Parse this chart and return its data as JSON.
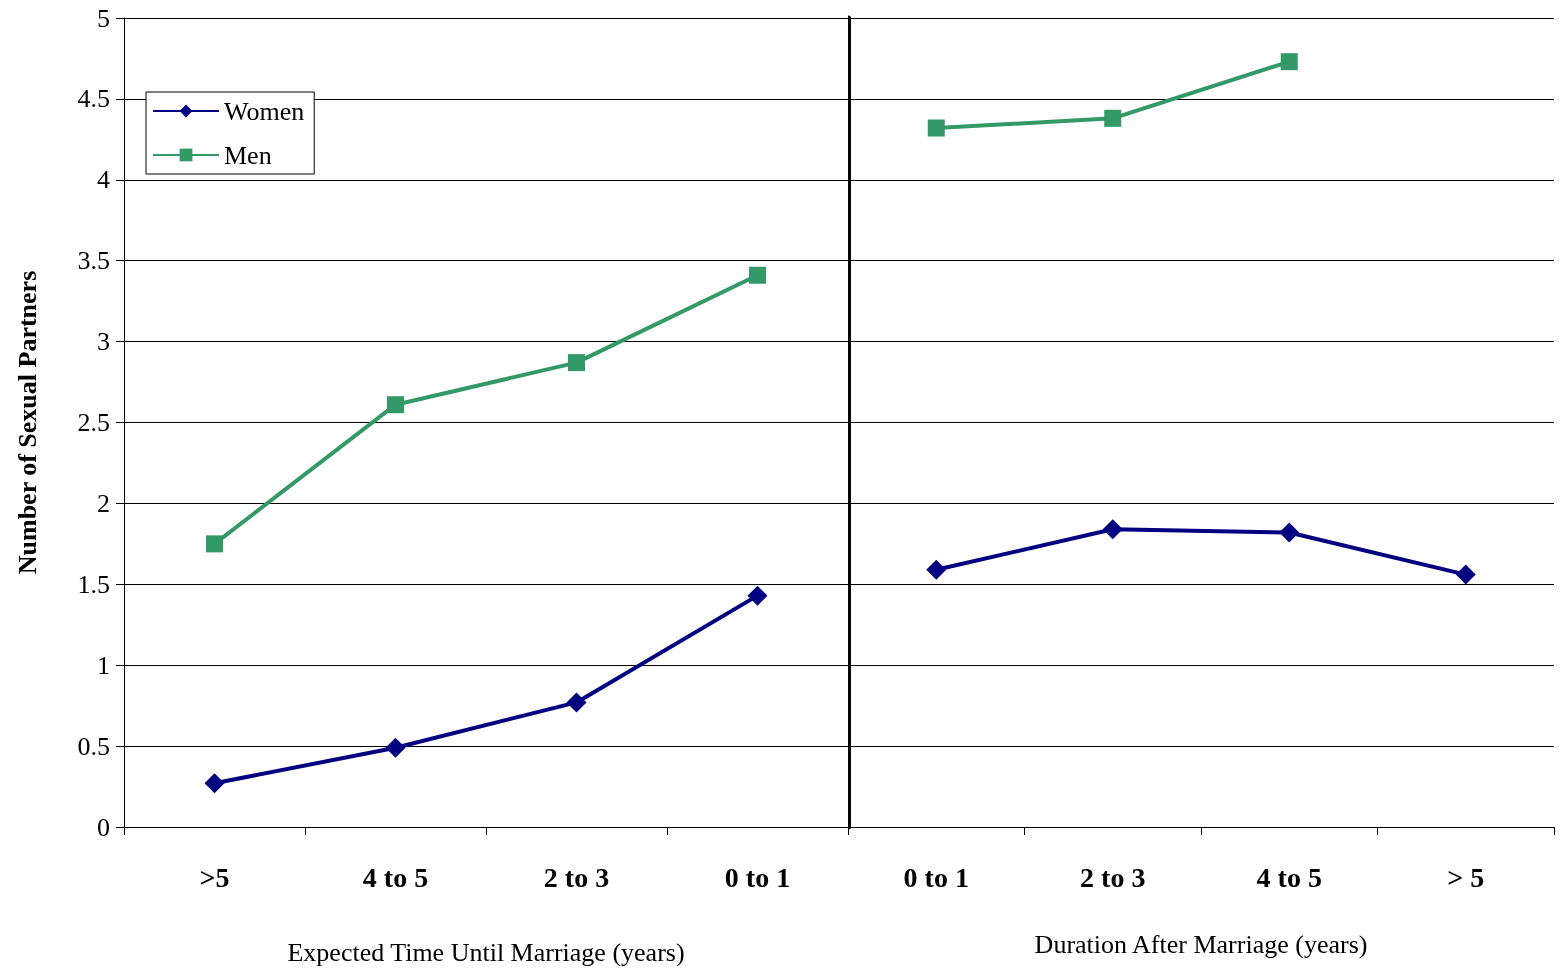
{
  "chart_data": [
    {
      "type": "line",
      "ylabel": "Number of Sexual Partners",
      "xlabel": "Expected Time Until Marriage (years)",
      "categories": [
        ">5",
        "4 to 5",
        "2 to 3",
        "0 to 1"
      ],
      "ylim": [
        0,
        5
      ],
      "yticks": [
        0,
        0.5,
        1,
        1.5,
        2,
        2.5,
        3,
        3.5,
        4,
        4.5,
        5
      ],
      "grid": "y",
      "legend": "top left",
      "series": [
        {
          "name": "Women",
          "color": "#000080",
          "marker": "diamond",
          "values": [
            0.27,
            0.49,
            0.77,
            1.43
          ]
        },
        {
          "name": "Men",
          "color": "#339966",
          "marker": "square",
          "values": [
            1.75,
            2.61,
            2.87,
            3.41
          ]
        }
      ]
    },
    {
      "type": "line",
      "xlabel": "Duration After Marriage (years)",
      "categories": [
        "0 to 1",
        "2 to 3",
        "4 to 5",
        "> 5"
      ],
      "ylim": [
        0,
        5
      ],
      "yticks": [
        0,
        0.5,
        1,
        1.5,
        2,
        2.5,
        3,
        3.5,
        4,
        4.5,
        5
      ],
      "grid": "y",
      "tick_labels": "x",
      "series": [
        {
          "color": "#000080",
          "marker": "diamond",
          "values": [
            1.59,
            1.84,
            1.82,
            1.56
          ]
        },
        {
          "color": "#339966",
          "marker": "square",
          "values": [
            4.32,
            4.38,
            4.73,
            null
          ]
        }
      ]
    }
  ]
}
